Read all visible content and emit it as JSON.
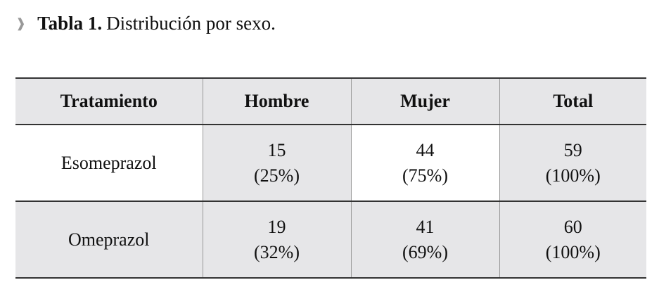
{
  "caption": {
    "label": "Tabla 1.",
    "text": "Distribución por sexo."
  },
  "table": {
    "header": [
      "Tratamiento",
      "Hombre",
      "Mujer",
      "Total"
    ],
    "rows": [
      [
        {
          "name": "Esomeprazol"
        },
        {
          "count": "15",
          "percent": "(25%)"
        },
        {
          "count": "44",
          "percent": "(75%)"
        },
        {
          "count": "59",
          "percent": "(100%)"
        }
      ],
      [
        {
          "name": "Omeprazol"
        },
        {
          "count": "19",
          "percent": "(32%)"
        },
        {
          "count": "41",
          "percent": "(69%)"
        },
        {
          "count": "60",
          "percent": "(100%)"
        }
      ]
    ]
  }
}
